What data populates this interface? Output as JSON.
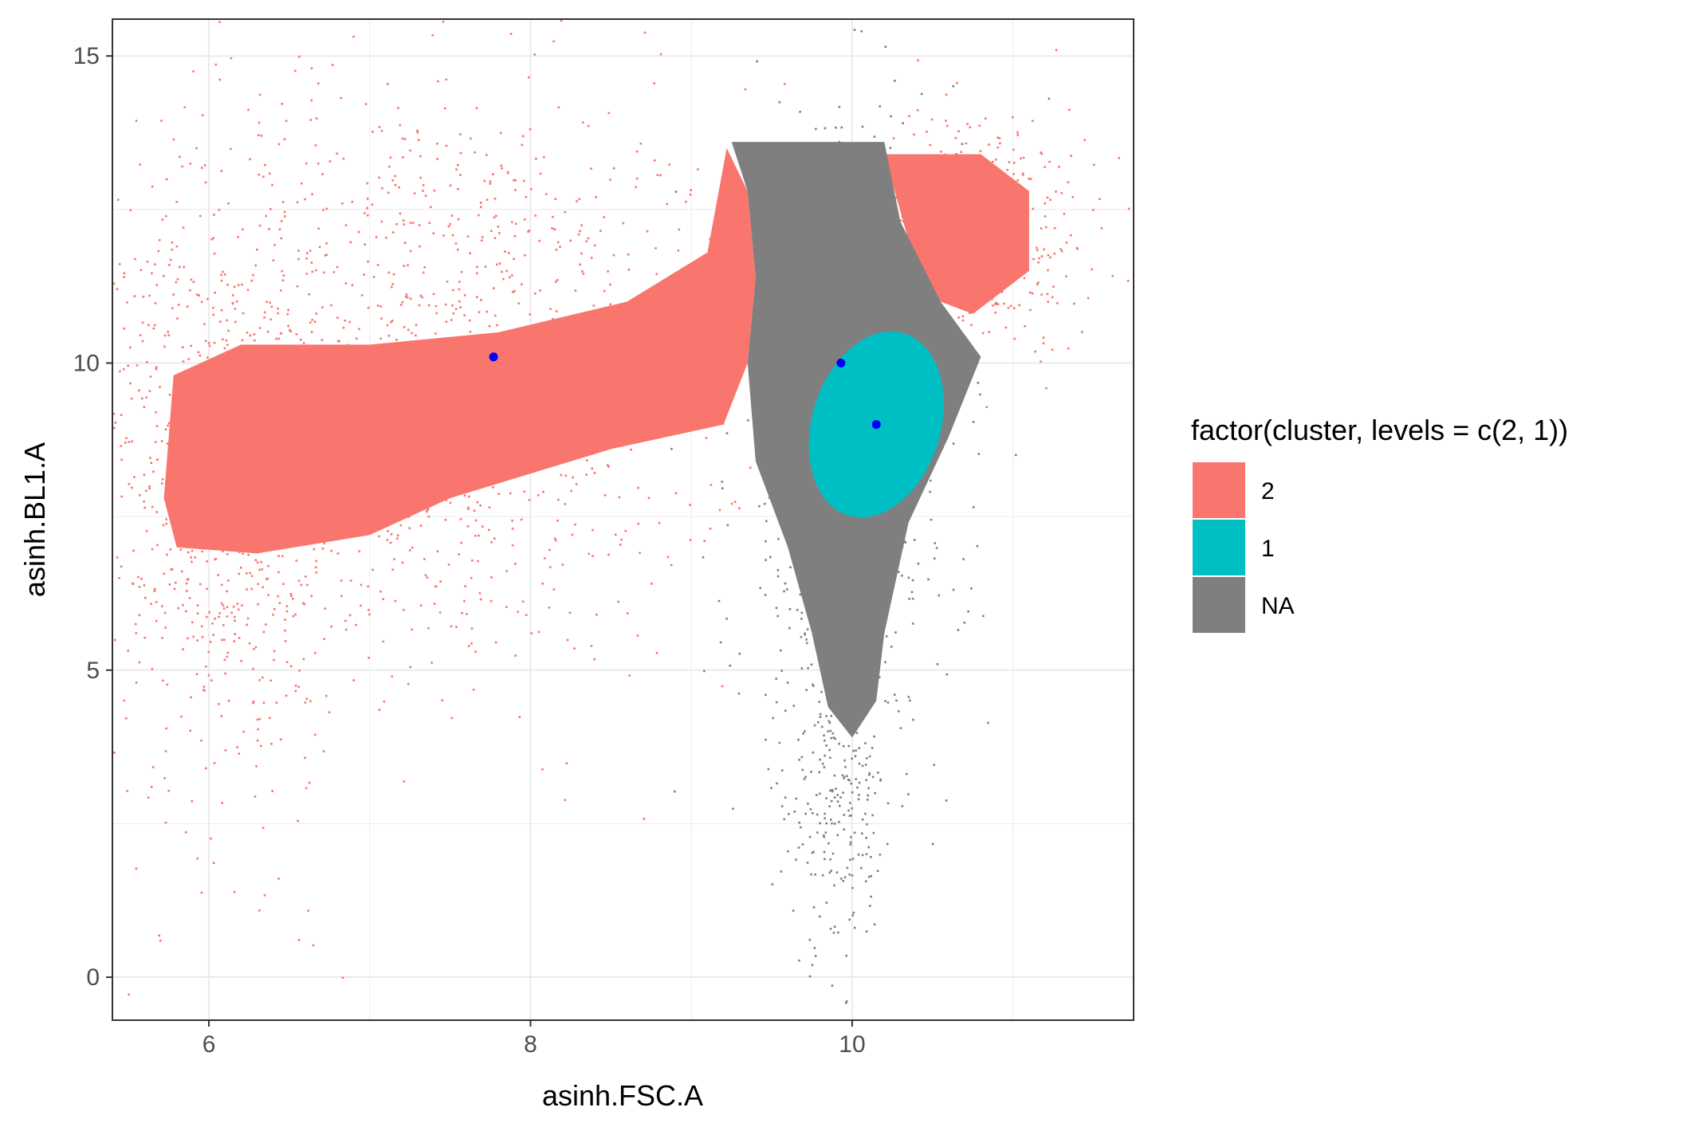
{
  "chart_data": {
    "type": "scatter",
    "title": "",
    "xlabel": "asinh.FSC.A",
    "ylabel": "asinh.BL1.A",
    "xlim": [
      5.4,
      11.75
    ],
    "ylim": [
      -0.7,
      15.6
    ],
    "x_ticks": [
      6,
      8,
      10
    ],
    "x_tick_labels": [
      "6",
      "8",
      "10"
    ],
    "y_ticks": [
      0,
      5,
      10,
      15
    ],
    "y_tick_labels": [
      "0",
      "5",
      "10",
      "15"
    ],
    "grid": true,
    "theme": "bw",
    "legend": {
      "title": "factor(cluster, levels = c(2, 1))",
      "position": "right",
      "entries": [
        {
          "label": "2",
          "color": "#F8766D"
        },
        {
          "label": "1",
          "color": "#00BFC4"
        },
        {
          "label": "NA",
          "color": "#7F7F7F"
        }
      ]
    },
    "series": [
      {
        "name": "2",
        "color": "#F8766D",
        "description_of_extent": "dense band from x≈5.7 to x≈9.4 (y≈6.5–13.5) plus upper-right region x≈10.2–11.2 (y≈10.5–13.5)",
        "dense_region_polygon": [
          [
            5.72,
            7.8
          ],
          [
            5.78,
            9.8
          ],
          [
            6.2,
            10.3
          ],
          [
            7.0,
            10.3
          ],
          [
            7.8,
            10.5
          ],
          [
            8.6,
            11.0
          ],
          [
            9.1,
            11.8
          ],
          [
            9.22,
            13.5
          ],
          [
            9.35,
            12.8
          ],
          [
            9.4,
            11.4
          ],
          [
            9.35,
            10.0
          ],
          [
            9.2,
            9.0
          ],
          [
            8.5,
            8.6
          ],
          [
            7.5,
            7.8
          ],
          [
            7.0,
            7.2
          ],
          [
            6.3,
            6.9
          ],
          [
            5.8,
            7.0
          ]
        ],
        "upper_right_polygon": [
          [
            10.2,
            13.4
          ],
          [
            10.8,
            13.4
          ],
          [
            11.1,
            12.8
          ],
          [
            11.1,
            11.5
          ],
          [
            10.75,
            10.8
          ],
          [
            10.55,
            11.0
          ],
          [
            10.35,
            12.0
          ]
        ]
      },
      {
        "name": "NA",
        "color": "#7F7F7F",
        "description_of_extent": "vertical band from x≈9.3 to x≈10.7, y≈3.8–13.7 with sparse tail down to y≈0",
        "dense_region_polygon": [
          [
            9.25,
            13.6
          ],
          [
            10.2,
            13.6
          ],
          [
            10.3,
            12.3
          ],
          [
            10.55,
            11.0
          ],
          [
            10.8,
            10.1
          ],
          [
            10.6,
            8.8
          ],
          [
            10.35,
            7.4
          ],
          [
            10.2,
            5.6
          ],
          [
            10.15,
            4.5
          ],
          [
            10.0,
            3.9
          ],
          [
            9.85,
            4.4
          ],
          [
            9.75,
            5.6
          ],
          [
            9.6,
            7.0
          ],
          [
            9.4,
            8.4
          ],
          [
            9.35,
            10.0
          ],
          [
            9.4,
            11.4
          ],
          [
            9.35,
            12.8
          ]
        ]
      },
      {
        "name": "1",
        "color": "#00BFC4",
        "description_of_extent": "ellipse centered near (10.15, 9.0)",
        "ellipse": {
          "cx": 10.15,
          "cy": 9.0,
          "rx": 0.4,
          "ry": 1.55,
          "rotation_deg": 17
        }
      }
    ],
    "centers": {
      "color": "#0000FF",
      "points": [
        {
          "x": 7.77,
          "y": 10.1
        },
        {
          "x": 9.93,
          "y": 10.0
        },
        {
          "x": 10.15,
          "y": 9.0
        }
      ]
    }
  }
}
